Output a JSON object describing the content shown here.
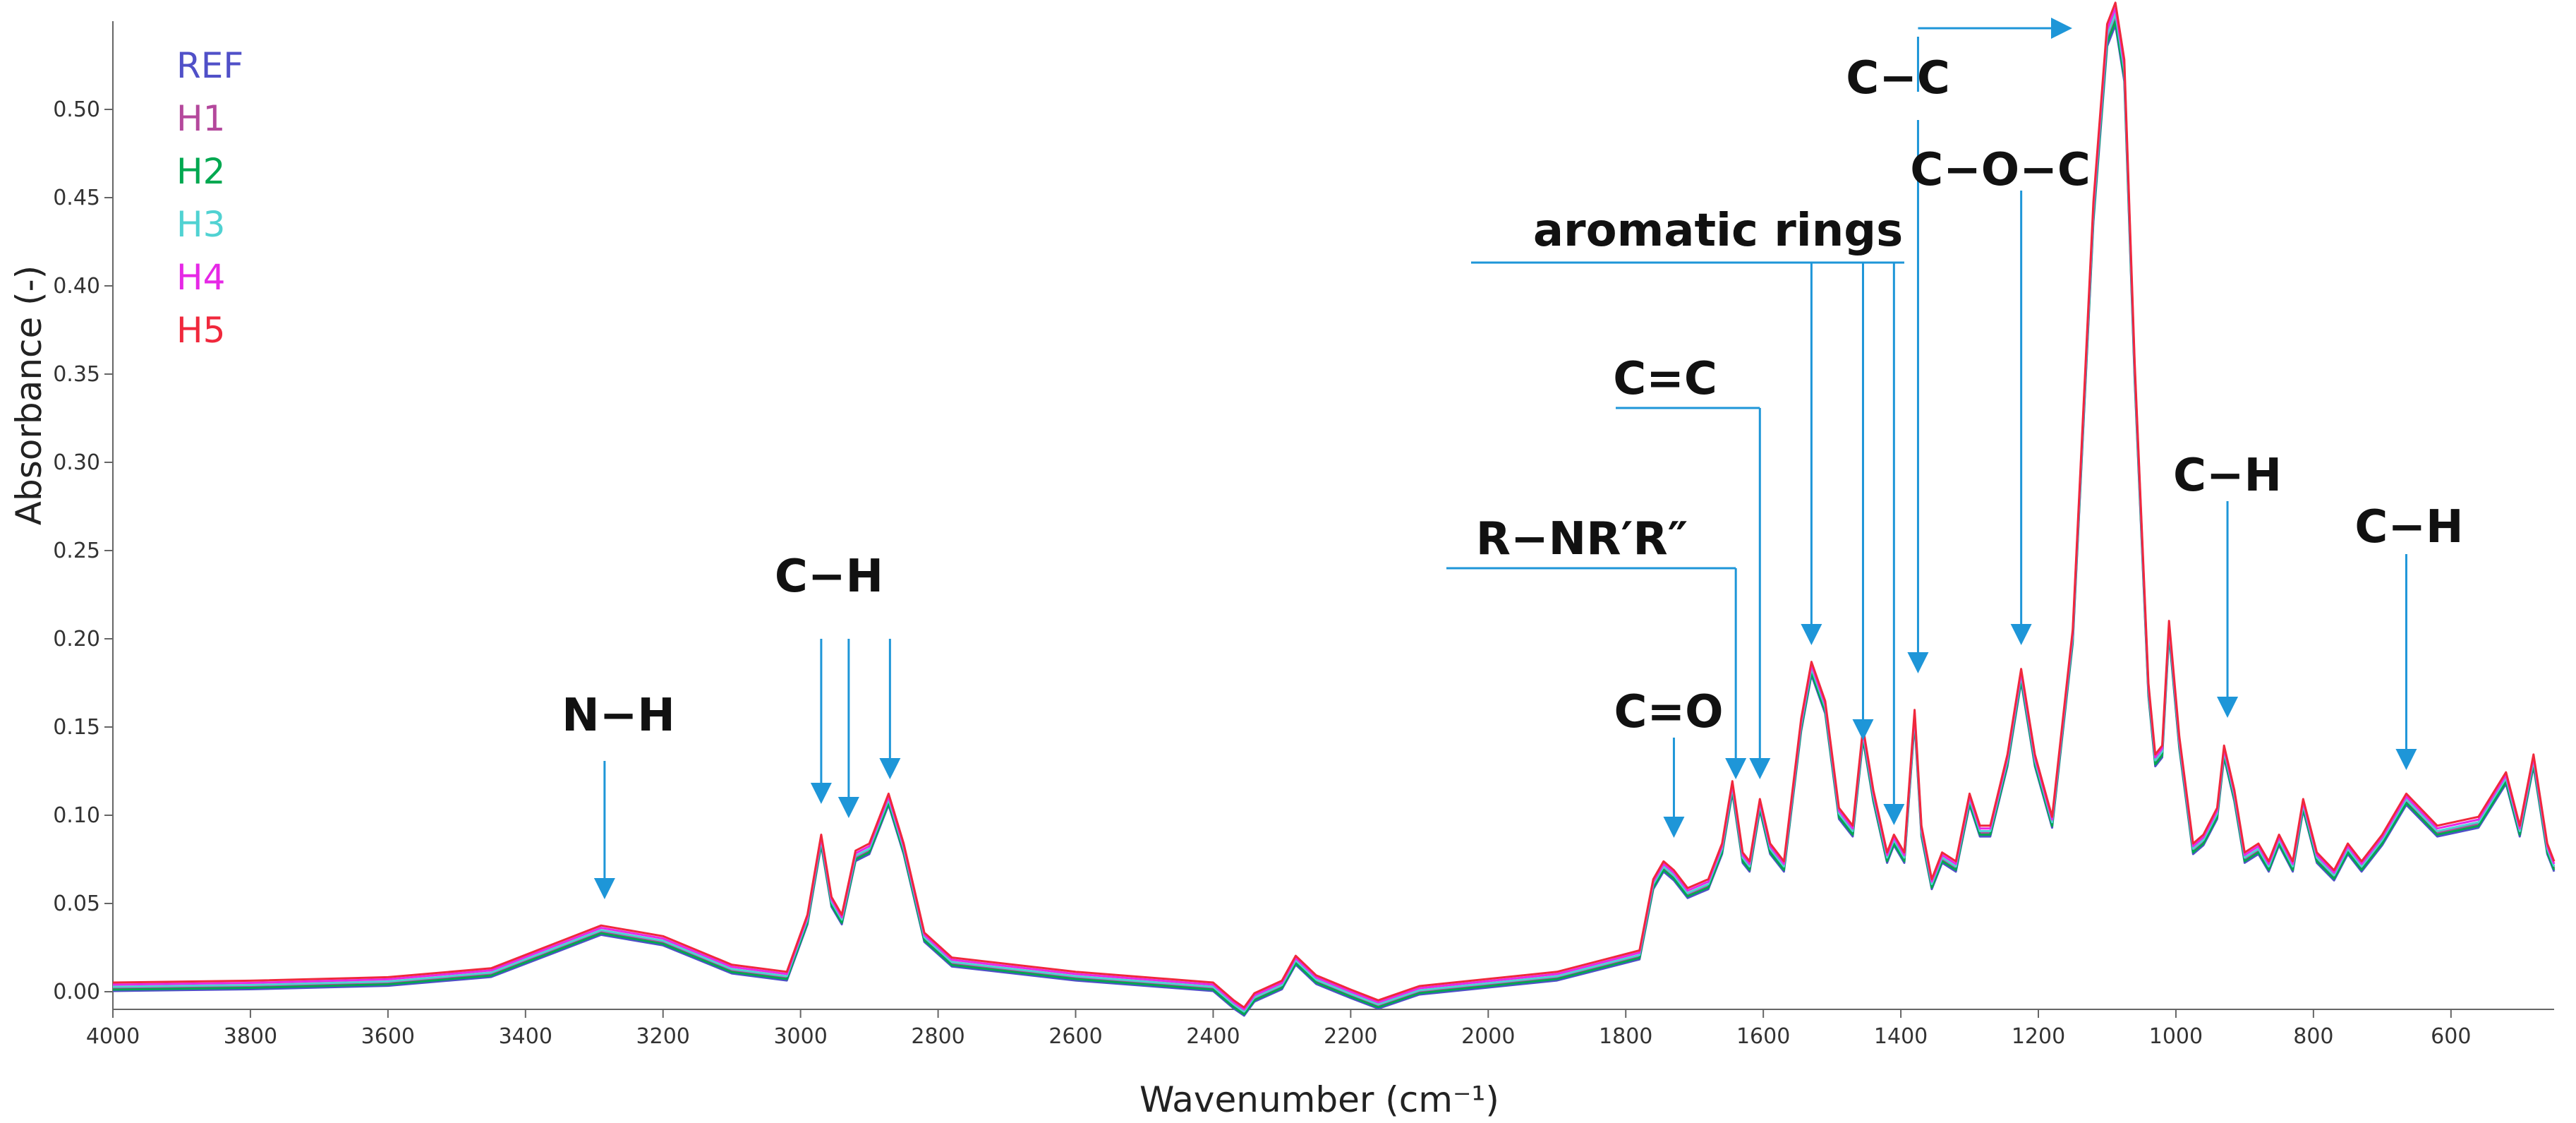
{
  "chart_data": {
    "type": "line",
    "xlabel": "Wavenumber (cm⁻¹)",
    "ylabel": "Absorbance (-)",
    "xlim": [
      4000,
      450
    ],
    "ylim": [
      -0.01,
      0.55
    ],
    "x_ticks": [
      4000,
      3800,
      3600,
      3400,
      3200,
      3000,
      2800,
      2600,
      2400,
      2200,
      2000,
      1800,
      1600,
      1400,
      1200,
      1000,
      800,
      600
    ],
    "y_ticks": [
      "0.00",
      "0.05",
      "0.10",
      "0.15",
      "0.20",
      "0.25",
      "0.30",
      "0.35",
      "0.40",
      "0.45",
      "0.50"
    ],
    "legend_position": "top-left",
    "annotation_color": "#1e96d8",
    "series": [
      {
        "name": "REF",
        "color": "#5050c8",
        "offset": -0.004
      },
      {
        "name": "H1",
        "color": "#b4489c",
        "offset": 0.0
      },
      {
        "name": "H2",
        "color": "#00a850",
        "offset": -0.002
      },
      {
        "name": "H3",
        "color": "#50d2d2",
        "offset": 0.002
      },
      {
        "name": "H4",
        "color": "#e628e6",
        "offset": 0.005
      },
      {
        "name": "H5",
        "color": "#f0283c",
        "offset": 0.008
      }
    ],
    "x": [
      4000,
      3800,
      3600,
      3450,
      3350,
      3290,
      3200,
      3100,
      3020,
      2990,
      2970,
      2955,
      2940,
      2920,
      2900,
      2872,
      2850,
      2820,
      2780,
      2600,
      2400,
      2370,
      2355,
      2340,
      2300,
      2280,
      2250,
      2200,
      2160,
      2100,
      1900,
      1780,
      1760,
      1745,
      1730,
      1710,
      1680,
      1660,
      1645,
      1630,
      1620,
      1605,
      1590,
      1570,
      1545,
      1530,
      1510,
      1490,
      1470,
      1455,
      1440,
      1420,
      1410,
      1395,
      1380,
      1370,
      1355,
      1340,
      1320,
      1300,
      1285,
      1270,
      1245,
      1225,
      1205,
      1180,
      1150,
      1120,
      1100,
      1088,
      1075,
      1060,
      1040,
      1030,
      1020,
      1010,
      995,
      975,
      960,
      940,
      930,
      915,
      900,
      880,
      865,
      850,
      830,
      815,
      795,
      770,
      750,
      730,
      700,
      665,
      620,
      560,
      520,
      500,
      480,
      460,
      450
    ],
    "y": [
      0.002,
      0.003,
      0.005,
      0.01,
      0.025,
      0.034,
      0.028,
      0.012,
      0.008,
      0.04,
      0.085,
      0.05,
      0.04,
      0.076,
      0.08,
      0.108,
      0.08,
      0.03,
      0.016,
      0.008,
      0.002,
      -0.008,
      -0.012,
      -0.004,
      0.003,
      0.017,
      0.006,
      -0.002,
      -0.008,
      0.0,
      0.008,
      0.02,
      0.06,
      0.07,
      0.065,
      0.055,
      0.06,
      0.08,
      0.115,
      0.075,
      0.07,
      0.105,
      0.08,
      0.07,
      0.15,
      0.182,
      0.16,
      0.1,
      0.09,
      0.145,
      0.11,
      0.075,
      0.085,
      0.075,
      0.155,
      0.09,
      0.06,
      0.075,
      0.07,
      0.108,
      0.09,
      0.09,
      0.13,
      0.178,
      0.13,
      0.095,
      0.2,
      0.44,
      0.54,
      0.552,
      0.52,
      0.35,
      0.17,
      0.13,
      0.135,
      0.205,
      0.14,
      0.08,
      0.085,
      0.1,
      0.135,
      0.11,
      0.075,
      0.08,
      0.07,
      0.085,
      0.07,
      0.105,
      0.075,
      0.065,
      0.08,
      0.07,
      0.085,
      0.108,
      0.09,
      0.095,
      0.12,
      0.09,
      0.13,
      0.08,
      0.07
    ],
    "annotations": [
      {
        "id": "nh",
        "label": "N−H",
        "x": 3270
      },
      {
        "id": "ch1",
        "label": "C−H",
        "x": 2930
      },
      {
        "id": "co",
        "label": "C=O",
        "x": 1730
      },
      {
        "id": "rnr",
        "label": "R−NR′R″",
        "x": 1640
      },
      {
        "id": "cc2",
        "label": "C=C",
        "x": 1605
      },
      {
        "id": "arom",
        "label": "aromatic rings",
        "x": 1455
      },
      {
        "id": "cc",
        "label": "C−C",
        "x": 1375
      },
      {
        "id": "coc",
        "label": "C−O−C",
        "x": 1225
      },
      {
        "id": "ch2",
        "label": "C−H",
        "x": 925
      },
      {
        "id": "ch3",
        "label": "C−H",
        "x": 665
      }
    ]
  }
}
